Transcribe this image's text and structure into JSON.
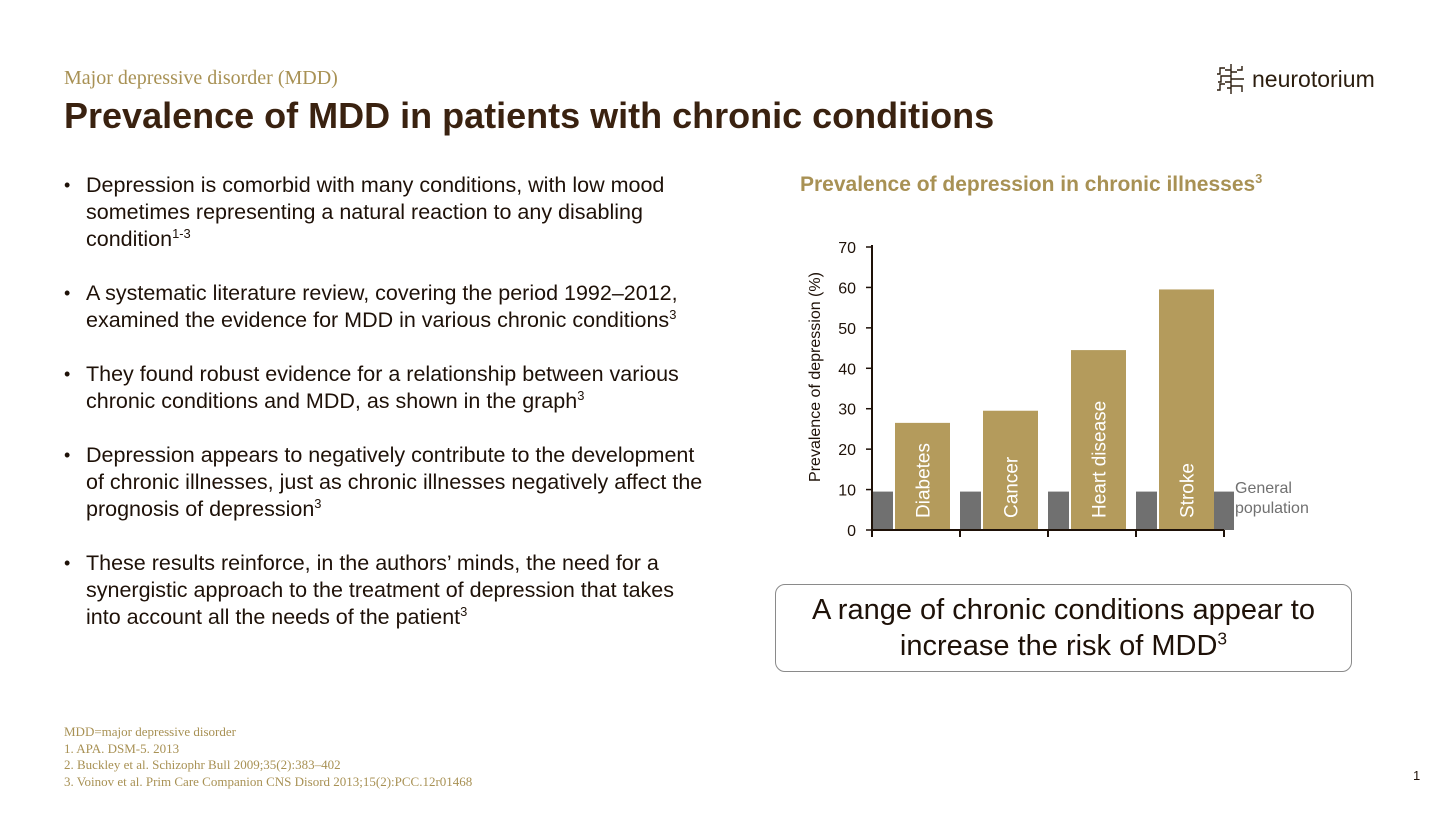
{
  "slide": {
    "subtitle": "Major depressive disorder (MDD)",
    "title": "Prevalence of MDD in patients with chronic conditions",
    "logo_text": "neurotorium",
    "page_number": "1"
  },
  "bullets": [
    {
      "text": "Depression is comorbid with many conditions, with low mood sometimes representing a natural reaction to any disabling condition",
      "sup": "1-3"
    },
    {
      "text": "A systematic literature review, covering the period 1992–2012, examined the evidence for MDD in various chronic conditions",
      "sup": "3"
    },
    {
      "text": "They found robust evidence for a relationship between various chronic conditions and MDD, as shown in the graph",
      "sup": "3"
    },
    {
      "text": "Depression appears to negatively contribute to the development of chronic illnesses, just as chronic illnesses negatively affect the prognosis of depression",
      "sup": "3"
    },
    {
      "text": "These results reinforce, in the authors’ minds, the need for a synergistic approach to the treatment of depression that takes into account all the needs of the patient",
      "sup": "3"
    }
  ],
  "callout": {
    "text": "A range of chronic conditions appear to increase the risk of MDD",
    "sup": "3"
  },
  "footnotes": [
    "MDD=major depressive disorder",
    "1.  APA. DSM-5. 2013",
    "2.  Buckley et al. Schizophr Bull 2009;35(2):383–402",
    "3.  Voinov et al. Prim Care Companion CNS Disord 2013;15(2):PCC.12r01468"
  ],
  "chart_data": {
    "type": "bar",
    "title": "Prevalence of depression in chronic illnesses",
    "title_sup": "3",
    "ylabel": "Prevalence of depression (%)",
    "xlabel": "",
    "ylim": [
      0,
      70
    ],
    "yticks": [
      0,
      10,
      20,
      30,
      40,
      50,
      60,
      70
    ],
    "categories": [
      "Diabetes",
      "Cancer",
      "Heart disease",
      "Stroke"
    ],
    "values": [
      26.5,
      29.5,
      44.5,
      59.5
    ],
    "baseline": {
      "label": "General population",
      "value": 9.5
    },
    "colors": {
      "condition": "#b49b5c",
      "baseline": "#707070",
      "axis": "#1e1108",
      "label": "#ffffff",
      "baseline_text": "#707070"
    },
    "grid": false,
    "legend": "none"
  }
}
